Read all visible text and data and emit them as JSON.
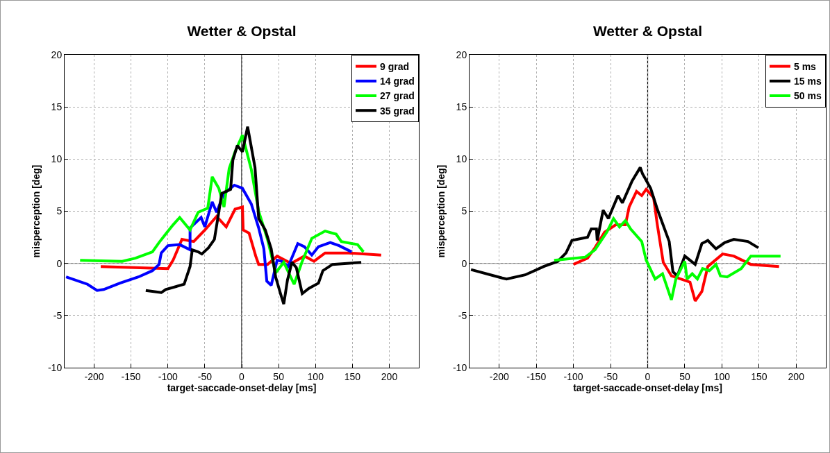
{
  "chart_data": [
    {
      "type": "line",
      "title": "Wetter & Opstal",
      "xlabel": "target-saccade-onset-delay [ms]",
      "ylabel": "misperception [deg]",
      "xlim": [
        -240,
        240
      ],
      "ylim": [
        -10,
        20
      ],
      "xticks": [
        -200,
        -150,
        -100,
        -50,
        0,
        50,
        100,
        150,
        200
      ],
      "yticks": [
        -10,
        -5,
        0,
        5,
        10,
        15,
        20
      ],
      "grid": true,
      "legend": "top right",
      "marker": "none",
      "line_style": "solid",
      "ref_lines": [
        {
          "axis": "y",
          "value": 0,
          "color": "#808080"
        },
        {
          "axis": "x",
          "value": 0,
          "color": "#000000"
        }
      ],
      "series": [
        {
          "name": "9 grad",
          "color": "#ff0000",
          "x": [
            -191,
            -100,
            -93,
            -81,
            -65,
            -50,
            -34,
            -21,
            -9,
            1,
            2,
            10,
            19,
            23,
            35,
            48,
            67,
            85,
            98,
            113,
            145,
            189
          ],
          "values": [
            -0.3,
            -0.5,
            0.3,
            2.3,
            2.1,
            3.2,
            4.5,
            3.5,
            5.2,
            5.4,
            3.2,
            2.9,
            0.7,
            -0.1,
            -0.1,
            0.7,
            0,
            0.7,
            0.2,
            1.0,
            1.0,
            0.8
          ]
        },
        {
          "name": "14 grad",
          "color": "#0000ff",
          "x": [
            -238,
            -209,
            -196,
            -187,
            -165,
            -140,
            -121,
            -112,
            -109,
            -100,
            -84,
            -70,
            -70,
            -55,
            -50,
            -40,
            -34,
            -24,
            -10,
            1,
            13,
            23,
            30,
            34,
            40,
            48,
            54,
            63,
            76,
            85,
            95,
            104,
            120,
            132,
            149
          ],
          "values": [
            -1.3,
            -2.0,
            -2.6,
            -2.5,
            -1.9,
            -1.3,
            -0.7,
            -0.1,
            1.0,
            1.7,
            1.8,
            1.3,
            3.4,
            4.4,
            3.5,
            5.9,
            4.9,
            6.7,
            7.5,
            7.2,
            5.7,
            3.4,
            1.4,
            -1.7,
            -2.1,
            0.3,
            0.2,
            -0.3,
            1.9,
            1.6,
            0.8,
            1.6,
            2.0,
            1.7,
            1.1
          ]
        },
        {
          "name": "27 grad",
          "color": "#00ff00",
          "x": [
            -219,
            -162,
            -144,
            -121,
            -112,
            -102,
            -93,
            -84,
            -70,
            -59,
            -46,
            -40,
            -31,
            -24,
            -17,
            -9,
            1,
            13,
            23,
            35,
            46,
            57,
            71,
            82,
            95,
            113,
            128,
            135,
            157,
            165
          ],
          "values": [
            0.3,
            0.2,
            0.5,
            1.1,
            2.0,
            2.9,
            3.7,
            4.4,
            3.2,
            4.9,
            5.3,
            8.3,
            7.2,
            5.4,
            9.1,
            10.7,
            12.3,
            9.0,
            5.0,
            2.3,
            -0.9,
            0.1,
            -2.0,
            0.2,
            2.4,
            3.1,
            2.8,
            2.1,
            1.8,
            1.1
          ]
        },
        {
          "name": "35 grad",
          "color": "#000000",
          "x": [
            -130,
            -109,
            -103,
            -78,
            -70,
            -67,
            -59,
            -54,
            -45,
            -37,
            -32,
            -27,
            -15,
            -12,
            -6,
            1,
            8,
            18,
            23,
            32,
            40,
            46,
            53,
            57,
            62,
            68,
            74,
            82,
            91,
            104,
            110,
            123,
            162
          ],
          "values": [
            -2.6,
            -2.8,
            -2.5,
            -2.0,
            -0.3,
            1.3,
            1.1,
            0.9,
            1.5,
            2.3,
            4.5,
            6.7,
            7.1,
            9.9,
            11.3,
            10.7,
            13.1,
            9.2,
            4.3,
            3.2,
            1.4,
            -1.3,
            -3.0,
            -3.9,
            -1.6,
            0.1,
            -0.4,
            -2.9,
            -2.4,
            -1.9,
            -0.7,
            -0.1,
            0.1
          ]
        }
      ]
    },
    {
      "type": "line",
      "title": "Wetter & Opstal",
      "xlabel": "target-saccade-onset-delay [ms]",
      "ylabel": "misperception [deg]",
      "xlim": [
        -240,
        240
      ],
      "ylim": [
        -10,
        20
      ],
      "xticks": [
        -200,
        -150,
        -100,
        -50,
        0,
        50,
        100,
        150,
        200
      ],
      "yticks": [
        -10,
        -5,
        0,
        5,
        10,
        15,
        20
      ],
      "grid": true,
      "legend": "top right",
      "marker": "none",
      "line_style": "solid",
      "ref_lines": [
        {
          "axis": "y",
          "value": 0,
          "color": "#808080"
        },
        {
          "axis": "x",
          "value": 0,
          "color": "#000000"
        }
      ],
      "series": [
        {
          "name": "5 ms",
          "color": "#ff0000",
          "x": [
            -100,
            -81,
            -71,
            -58,
            -43,
            -30,
            -25,
            -15,
            -8,
            -2,
            8,
            13,
            21,
            32,
            57,
            64,
            73,
            81,
            101,
            116,
            139,
            177
          ],
          "values": [
            -0.1,
            0.5,
            1.5,
            3.0,
            3.7,
            3.7,
            5.4,
            6.9,
            6.5,
            7.1,
            6.3,
            3.7,
            0.1,
            -1.2,
            -1.8,
            -3.6,
            -2.7,
            -0.3,
            0.9,
            0.7,
            -0.1,
            -0.3
          ]
        },
        {
          "name": "15 ms",
          "color": "#000000",
          "x": [
            -238,
            -196,
            -190,
            -165,
            -140,
            -121,
            -110,
            -102,
            -81,
            -76,
            -69,
            -68,
            -60,
            -53,
            -40,
            -34,
            -21,
            -10,
            -7,
            4,
            13,
            29,
            34,
            40,
            50,
            64,
            73,
            81,
            92,
            104,
            116,
            135,
            149
          ],
          "values": [
            -0.6,
            -1.4,
            -1.5,
            -1.1,
            -0.3,
            0.2,
            1.0,
            2.2,
            2.5,
            3.3,
            3.3,
            2.2,
            5.1,
            4.3,
            6.5,
            5.8,
            7.9,
            9.2,
            8.6,
            7.2,
            5.2,
            2.1,
            -0.8,
            -1.2,
            0.7,
            -0.1,
            1.9,
            2.2,
            1.4,
            2.0,
            2.3,
            2.1,
            1.5
          ]
        },
        {
          "name": "50 ms",
          "color": "#00ff00",
          "x": [
            -126,
            -84,
            -71,
            -55,
            -46,
            -38,
            -30,
            -23,
            -8,
            -2,
            4,
            10,
            20,
            32,
            38,
            50,
            53,
            60,
            67,
            74,
            83,
            92,
            98,
            107,
            126,
            139,
            179
          ],
          "values": [
            0.3,
            0.6,
            1.3,
            3.0,
            4.3,
            3.5,
            4.1,
            3.3,
            2.1,
            0.3,
            -0.6,
            -1.5,
            -1.0,
            -3.5,
            -1.5,
            0.2,
            -1.5,
            -1.0,
            -1.5,
            -0.5,
            -0.7,
            -0.1,
            -1.2,
            -1.3,
            -0.5,
            0.7,
            0.7
          ]
        }
      ]
    }
  ]
}
